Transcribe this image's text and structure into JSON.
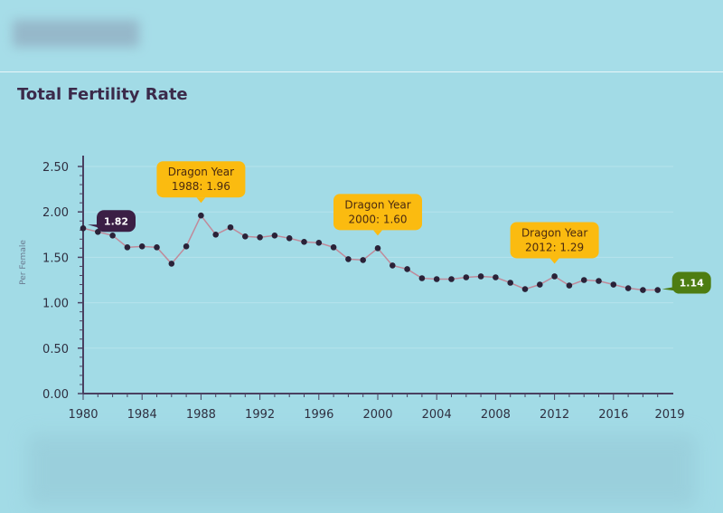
{
  "header": {
    "title": "Total Fertility Rate"
  },
  "chart_data": {
    "type": "line",
    "title": "Total Fertility Rate",
    "ylabel": "Per Female",
    "xlabel": "",
    "ylim": [
      0,
      2.5
    ],
    "yticks": [
      "0.00",
      "0.50",
      "1.00",
      "1.50",
      "2.00",
      "2.50"
    ],
    "xticks": [
      "1980",
      "1984",
      "1988",
      "1992",
      "1996",
      "2000",
      "2004",
      "2008",
      "2012",
      "2016",
      "2019"
    ],
    "x": [
      1980,
      1981,
      1982,
      1983,
      1984,
      1985,
      1986,
      1987,
      1988,
      1989,
      1990,
      1991,
      1992,
      1993,
      1994,
      1995,
      1996,
      1997,
      1998,
      1999,
      2000,
      2001,
      2002,
      2003,
      2004,
      2005,
      2006,
      2007,
      2008,
      2009,
      2010,
      2011,
      2012,
      2013,
      2014,
      2015,
      2016,
      2017,
      2018,
      2019
    ],
    "series": [
      {
        "name": "Total Fertility Rate",
        "values": [
          1.82,
          1.78,
          1.74,
          1.61,
          1.62,
          1.61,
          1.43,
          1.62,
          1.96,
          1.75,
          1.83,
          1.73,
          1.72,
          1.74,
          1.71,
          1.67,
          1.66,
          1.61,
          1.48,
          1.47,
          1.6,
          1.41,
          1.37,
          1.27,
          1.26,
          1.26,
          1.28,
          1.29,
          1.28,
          1.22,
          1.15,
          1.2,
          1.29,
          1.19,
          1.25,
          1.24,
          1.2,
          1.16,
          1.14,
          1.14
        ]
      }
    ],
    "annotations": [
      {
        "year": 1980,
        "value": 1.82,
        "label": "1.82",
        "style": "start",
        "color": "#3b1f45"
      },
      {
        "year": 2019,
        "value": 1.14,
        "label": "1.14",
        "style": "end",
        "color": "#4e7d12"
      },
      {
        "year": 1988,
        "value": 1.96,
        "line1": "Dragon Year",
        "line2": "1988: 1.96",
        "style": "callout",
        "color": "#fbbb10"
      },
      {
        "year": 2000,
        "value": 1.6,
        "line1": "Dragon Year",
        "line2": "2000: 1.60",
        "style": "callout",
        "color": "#fbbb10"
      },
      {
        "year": 2012,
        "value": 1.29,
        "line1": "Dragon Year",
        "line2": "2012: 1.29",
        "style": "callout",
        "color": "#fbbb10"
      }
    ]
  }
}
